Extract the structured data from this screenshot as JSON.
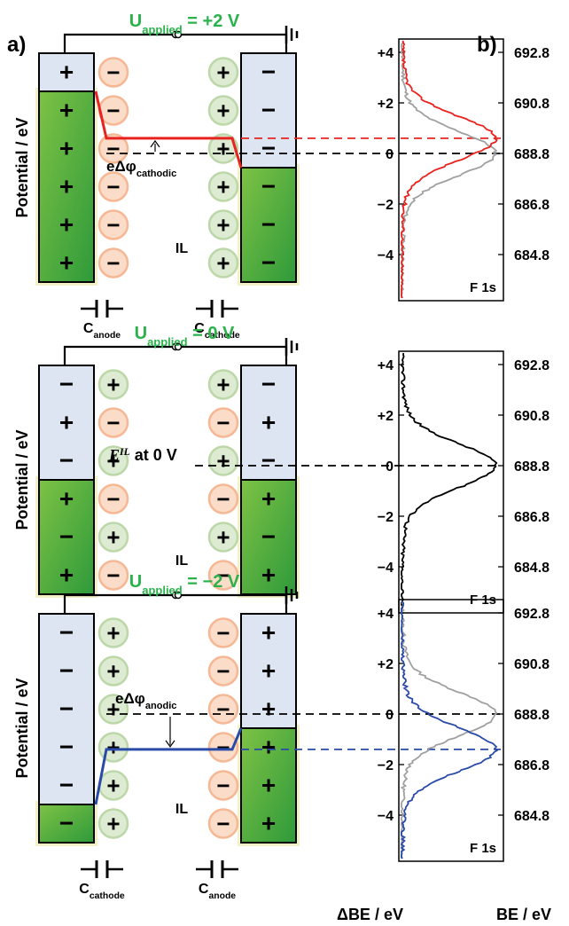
{
  "panel_a_label": "a)",
  "panel_b_label": "b)",
  "potential_axis_label": "Potential / eV",
  "electrolyte_label": "IL",
  "u_applied_base": "U",
  "u_applied_sub": "applied",
  "dphi_prefix": "eΔφ",
  "eil_label": {
    "e": "E",
    "sup": "IL",
    "tail": " at 0 V"
  },
  "delta_be_label": "ΔBE / eV",
  "be_label": "BE / eV",
  "spectrum_label": "F 1s",
  "delta_ticks": [
    "+4",
    "+2",
    "0",
    "−2",
    "−4"
  ],
  "be_ticks": [
    "692.8",
    "690.8",
    "688.8",
    "686.8",
    "684.8"
  ],
  "colors": {
    "positive_shift": "#e8231f",
    "negative_shift": "#2a4aa8",
    "reference": "#000000",
    "previous": "#a0a0a0",
    "voltage": "#2bb24c",
    "electrode_filled": "#3aa63a",
    "electrode_empty": "#dde4f2",
    "anion_fill": "#fbdcc8",
    "cation_fill": "#dcebd2"
  },
  "panels": [
    {
      "u_value": " = +2 V",
      "dphi_sub": "cathodic",
      "left_cap_sub": "anode",
      "right_cap_sub": "cathode",
      "left_signs": [
        "+",
        "+",
        "+",
        "+",
        "+",
        "+"
      ],
      "left_ions": [
        "−",
        "−",
        "−",
        "−",
        "−",
        "−"
      ],
      "right_ions": [
        "+",
        "+",
        "+",
        "+",
        "+",
        "+"
      ],
      "right_signs": [
        "−",
        "−",
        "−",
        "−",
        "−",
        "−"
      ],
      "left_fill_from": 1,
      "right_fill_from": 3,
      "peak_shift_ev": 0.6
    },
    {
      "u_value": " = 0 V",
      "left_signs": [
        "−",
        "+",
        "−",
        "+",
        "−",
        "+"
      ],
      "left_ions": [
        "+",
        "−",
        "+",
        "−",
        "+",
        "−"
      ],
      "right_ions": [
        "+",
        "−",
        "+",
        "−",
        "+",
        "−"
      ],
      "right_signs": [
        "−",
        "+",
        "−",
        "+",
        "−",
        "+"
      ],
      "left_fill_from": 3,
      "right_fill_from": 3,
      "peak_shift_ev": 0.0
    },
    {
      "u_value": " = −2 V",
      "dphi_sub": "anodic",
      "left_cap_sub": "cathode",
      "right_cap_sub": "anode",
      "left_signs": [
        "−",
        "−",
        "−",
        "−",
        "−",
        "−"
      ],
      "left_ions": [
        "+",
        "+",
        "+",
        "+",
        "+",
        "+"
      ],
      "right_ions": [
        "−",
        "−",
        "−",
        "−",
        "−",
        "−"
      ],
      "right_signs": [
        "+",
        "+",
        "+",
        "+",
        "+",
        "+"
      ],
      "left_fill_from": 5,
      "right_fill_from": 3,
      "peak_shift_ev": -1.4
    }
  ]
}
